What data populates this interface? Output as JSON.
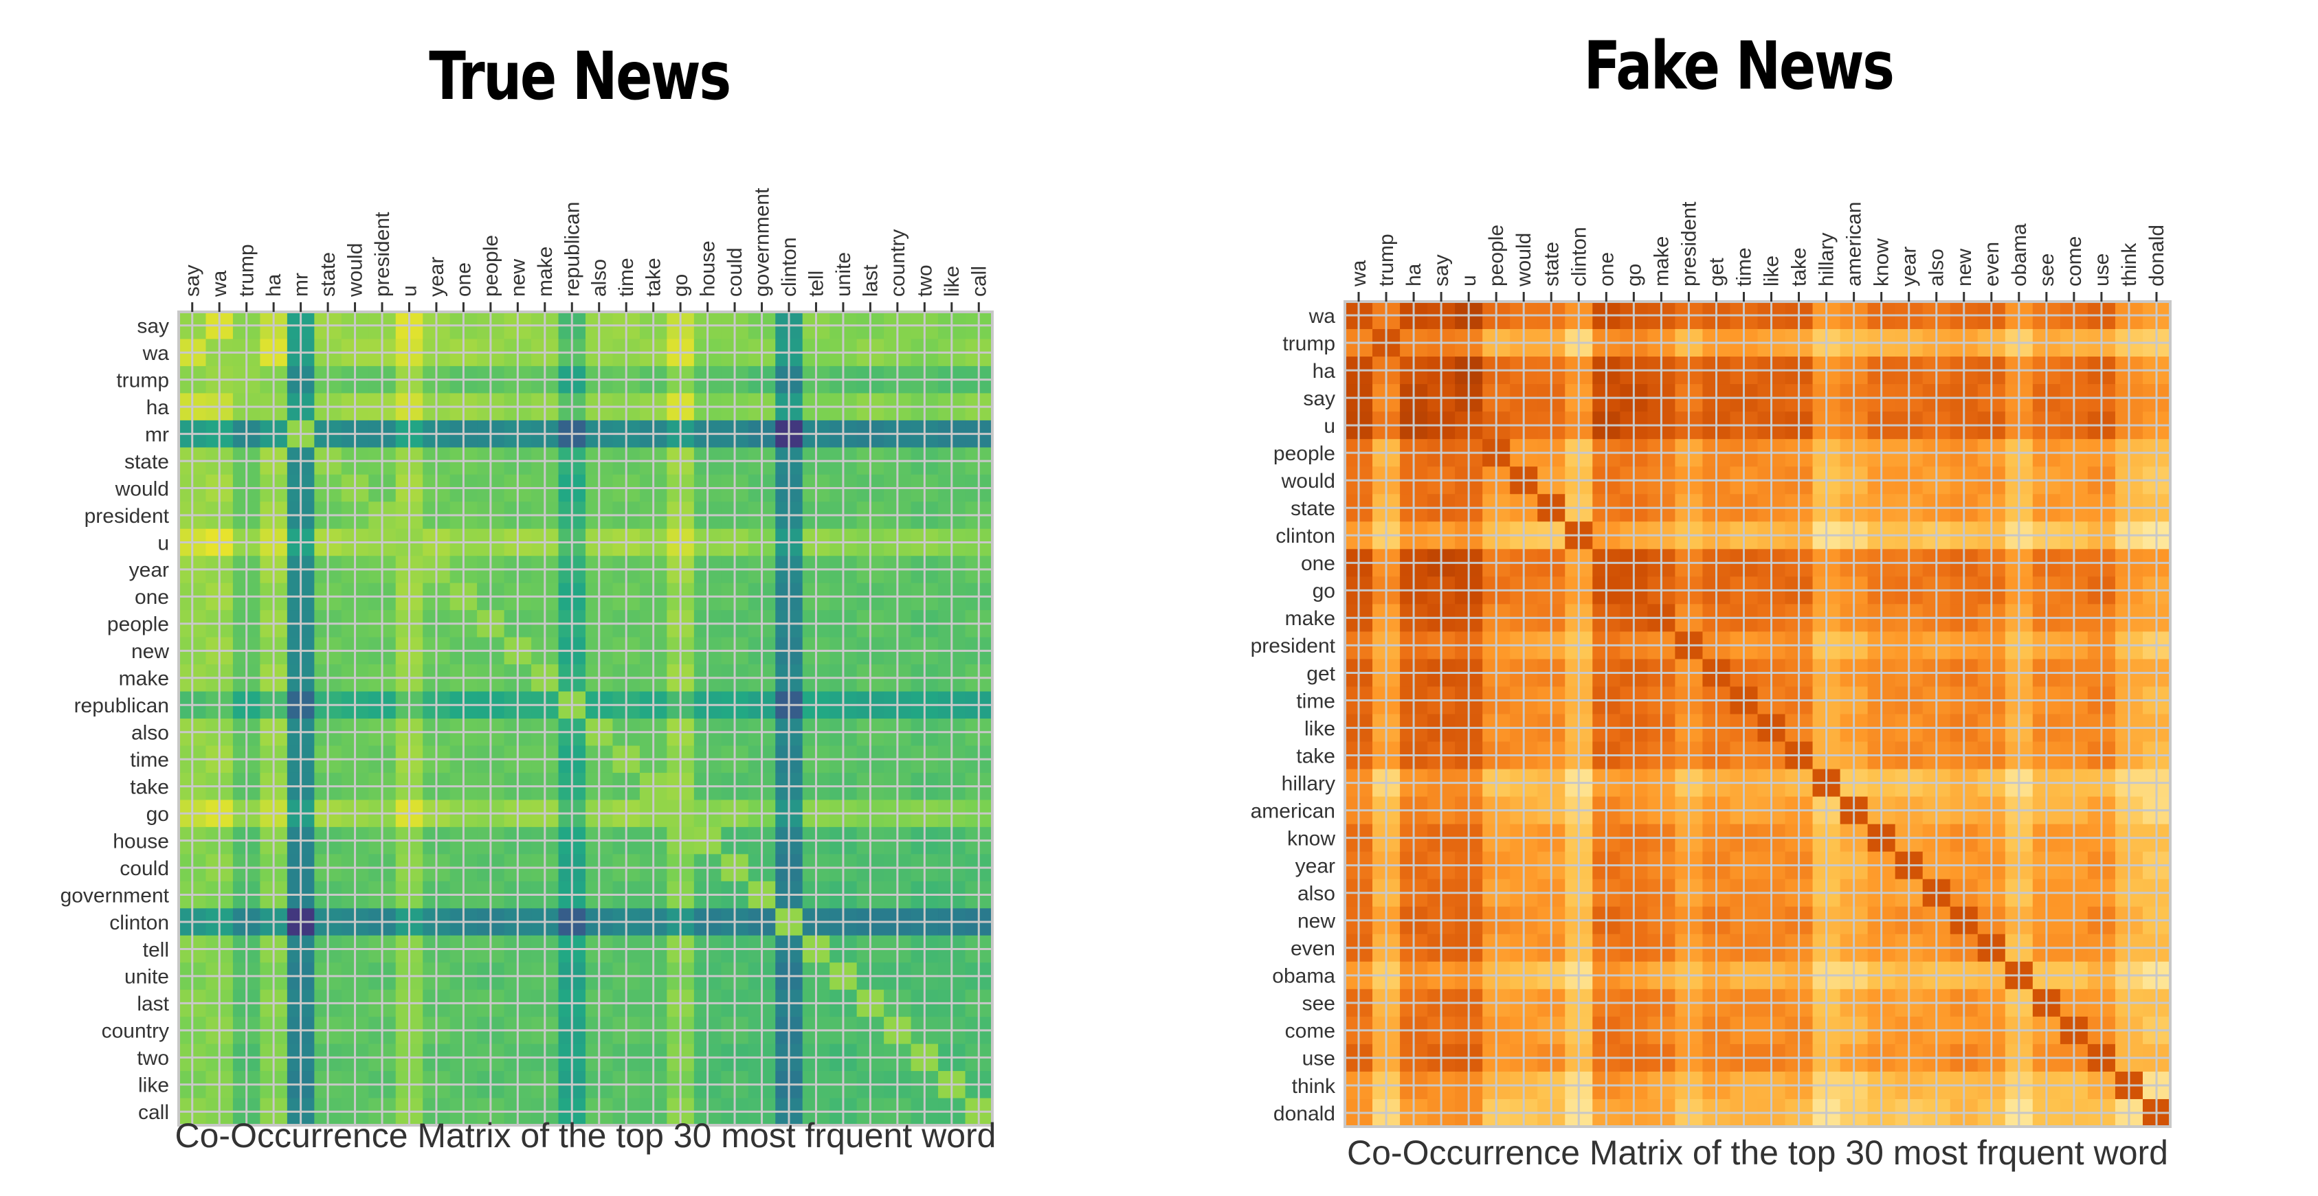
{
  "chart_data": [
    {
      "type": "heatmap",
      "panel_title": "True News",
      "caption": "Co-Occurrence Matrix of the top 30 most frquent word",
      "colormap": "viridis",
      "grid": true,
      "labels": [
        "say",
        "wa",
        "trump",
        "ha",
        "mr",
        "state",
        "would",
        "president",
        "u",
        "year",
        "one",
        "people",
        "new",
        "make",
        "republican",
        "also",
        "time",
        "take",
        "go",
        "house",
        "could",
        "government",
        "clinton",
        "tell",
        "unite",
        "last",
        "country",
        "two",
        "like",
        "call"
      ],
      "row_strength": [
        0.82,
        0.86,
        0.35,
        0.84,
        -0.9,
        0.45,
        0.45,
        0.45,
        0.9,
        0.45,
        0.42,
        0.4,
        0.4,
        0.42,
        -0.25,
        0.42,
        0.42,
        0.38,
        0.84,
        0.28,
        0.3,
        0.25,
        -1.0,
        0.3,
        0.25,
        0.3,
        0.3,
        0.25,
        0.25,
        0.3
      ],
      "diagonal_value": 0.62
    },
    {
      "type": "heatmap",
      "panel_title": "Fake News",
      "caption": "Co-Occurrence Matrix of the top 30 most frquent word",
      "colormap": "YlOrBr",
      "grid": true,
      "labels": [
        "wa",
        "trump",
        "ha",
        "say",
        "u",
        "people",
        "would",
        "state",
        "clinton",
        "one",
        "go",
        "make",
        "president",
        "get",
        "time",
        "like",
        "take",
        "hillary",
        "american",
        "know",
        "year",
        "also",
        "new",
        "even",
        "obama",
        "see",
        "come",
        "use",
        "think",
        "donald"
      ],
      "row_strength": [
        0.92,
        0.3,
        0.95,
        0.95,
        1.0,
        0.5,
        0.5,
        0.5,
        0.1,
        0.88,
        0.85,
        0.75,
        0.45,
        0.7,
        0.65,
        0.65,
        0.65,
        0.15,
        0.3,
        0.5,
        0.5,
        0.5,
        0.6,
        0.55,
        0.15,
        0.5,
        0.5,
        0.6,
        0.2,
        0.1
      ],
      "diagonal_value": 0.88
    }
  ]
}
